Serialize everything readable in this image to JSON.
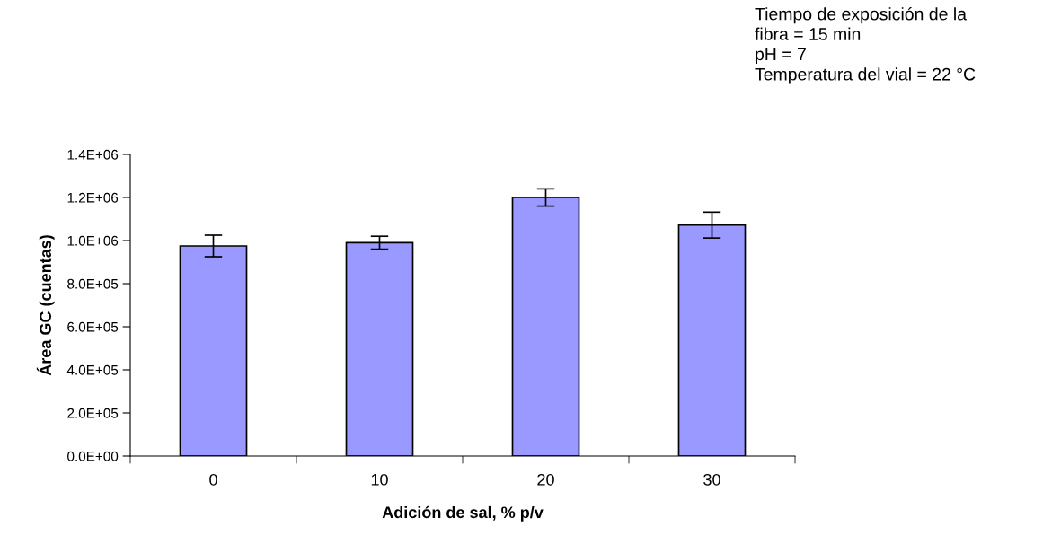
{
  "chart_data": {
    "type": "bar",
    "xlabel": "Adición de sal, % p/v",
    "ylabel": "Área GC (cuentas)",
    "categories": [
      "0",
      "10",
      "20",
      "30"
    ],
    "values": [
      975000,
      990000,
      1200000,
      1072000
    ],
    "errors": [
      50000,
      30000,
      40000,
      60000
    ],
    "color": "#9999ff",
    "ylim": [
      0,
      1400000
    ],
    "yticks": [
      {
        "value": 0,
        "label": "0.0E+00"
      },
      {
        "value": 200000,
        "label": "2.0E+05"
      },
      {
        "value": 400000,
        "label": "4.0E+05"
      },
      {
        "value": 600000,
        "label": "6.0E+05"
      },
      {
        "value": 800000,
        "label": "8.0E+05"
      },
      {
        "value": 1000000,
        "label": "1.0E+06"
      },
      {
        "value": 1200000,
        "label": "1.2E+06"
      },
      {
        "value": 1400000,
        "label": "1.4E+06"
      }
    ],
    "grid": false,
    "legend": false,
    "annotations": [
      "Tiempo de exposición de la\nfibra = 15 min\npH = 7\nTemperatura del vial = 22 °C"
    ]
  }
}
